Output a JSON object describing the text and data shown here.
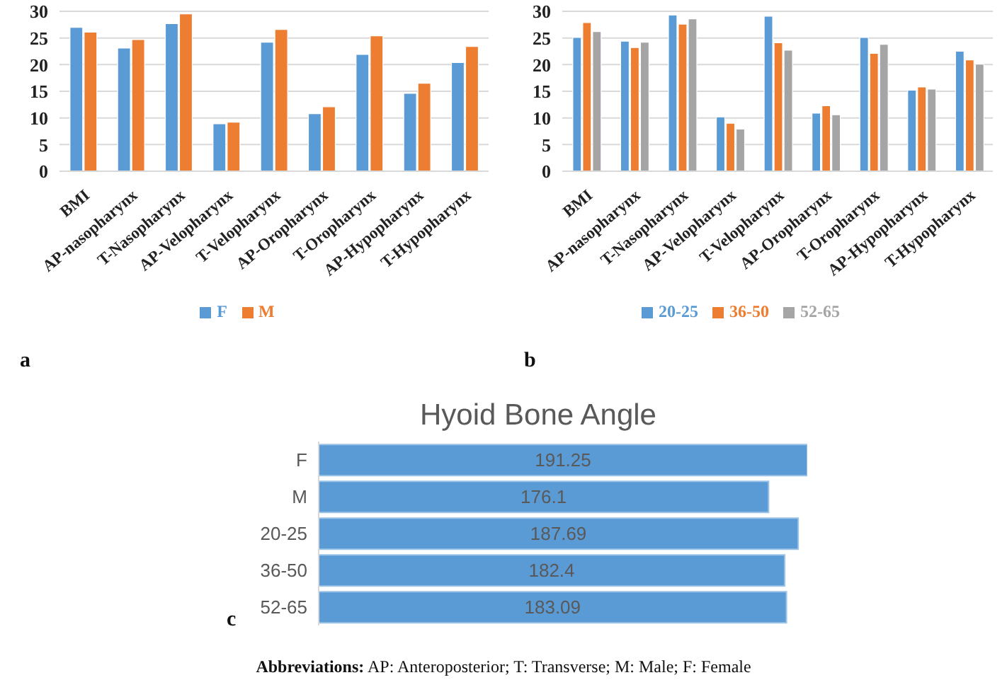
{
  "chart_data": [
    {
      "type": "bar",
      "categories": [
        "BMI",
        "AP-nasopharynx",
        "T-Nasopharynx",
        "AP-Velopharynx",
        "T-Velopharynx",
        "AP-Oropharynx",
        "T-Oropharynx",
        "AP-Hypopharynx",
        "T-Hypopharynx"
      ],
      "series": [
        {
          "name": "F",
          "color": "#5b9bd5",
          "values": [
            27.0,
            23.1,
            27.7,
            8.9,
            24.2,
            10.8,
            21.9,
            14.6,
            20.4
          ]
        },
        {
          "name": "M",
          "color": "#ed7d31",
          "values": [
            26.1,
            24.7,
            29.5,
            9.2,
            26.6,
            12.1,
            25.4,
            16.5,
            23.4
          ]
        }
      ],
      "ylim": [
        0,
        30
      ],
      "yticks": [
        0,
        5,
        10,
        15,
        20,
        25,
        30
      ],
      "grid": "y",
      "legend": "bottom",
      "annotations": [
        "a"
      ]
    },
    {
      "type": "bar",
      "categories": [
        "BMI",
        "AP-nasopharynx",
        "T-Nasopharynx",
        "AP-Velopharynx",
        "T-Velopharynx",
        "AP-Oropharynx",
        "T-Oropharynx",
        "AP-Hypopharynx",
        "T-Hypopharynx"
      ],
      "series": [
        {
          "name": "20-25",
          "color": "#5b9bd5",
          "values": [
            25.1,
            24.4,
            29.3,
            10.2,
            29.1,
            10.9,
            25.1,
            15.2,
            22.5
          ]
        },
        {
          "name": "36-50",
          "color": "#ed7d31",
          "values": [
            27.9,
            23.2,
            27.6,
            9.0,
            24.1,
            12.3,
            22.1,
            15.8,
            20.9
          ]
        },
        {
          "name": "52-65",
          "color": "#a5a5a5",
          "values": [
            26.2,
            24.2,
            28.6,
            7.9,
            22.7,
            10.6,
            23.8,
            15.4,
            20.1
          ]
        }
      ],
      "ylim": [
        0,
        30
      ],
      "yticks": [
        0,
        5,
        10,
        15,
        20,
        25,
        30
      ],
      "grid": "y",
      "legend": "bottom",
      "annotations": [
        "b"
      ]
    },
    {
      "type": "bar",
      "orientation": "horizontal",
      "title": "Hyoid Bone Angle",
      "categories": [
        "F",
        "M",
        "20-25",
        "36-50",
        "52-65"
      ],
      "values": [
        191.25,
        176.1,
        187.69,
        182.4,
        183.09
      ],
      "color": "#5b9bd5",
      "data_labels": true,
      "annotations": [
        "c",
        "Abbreviations: AP: Anteroposterior; T: Transverse; M: Male; F: Female"
      ]
    }
  ]
}
